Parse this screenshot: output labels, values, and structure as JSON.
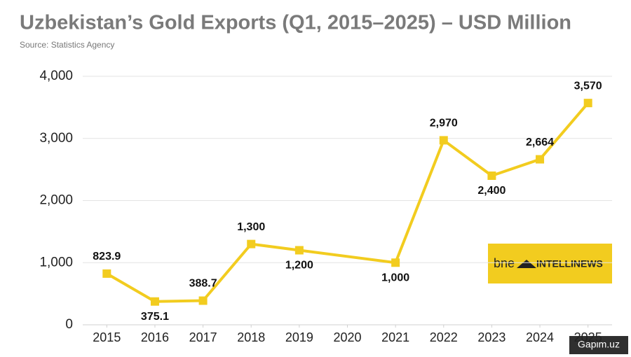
{
  "chart_data": {
    "type": "line",
    "title": "Uzbekistan’s Gold Exports (Q1, 2015–2025) – USD Million",
    "subtitle": "Source: Statistics Agency",
    "x": [
      2015,
      2016,
      2017,
      2018,
      2019,
      2021,
      2022,
      2023,
      2024,
      2025
    ],
    "values": [
      823.9,
      375.1,
      388.7,
      1300,
      1200,
      1000,
      2970,
      2400,
      2664,
      3570
    ],
    "value_labels": [
      "823.9",
      "375.1",
      "388.7",
      "1,300",
      "1,200",
      "1,000",
      "2,970",
      "2,400",
      "2,664",
      "3,570"
    ],
    "color": "#f2cc1f",
    "xlim": [
      2014.5,
      2025.5
    ],
    "xticks": [
      2015,
      2016,
      2017,
      2018,
      2019,
      2020,
      2021,
      2022,
      2023,
      2024,
      2025
    ],
    "ylim": [
      0,
      4000
    ],
    "yticks": [
      0,
      {
        "value": 1000,
        "label": "1,000"
      },
      {
        "value": 2000,
        "label": "2,000"
      },
      {
        "value": 3000,
        "label": "3,000"
      },
      {
        "value": 4000,
        "label": "4,000"
      }
    ],
    "grid": true
  },
  "logo": {
    "brand": "bne",
    "name": "INTELLINEWS"
  },
  "watermark": "Gapim.uz"
}
